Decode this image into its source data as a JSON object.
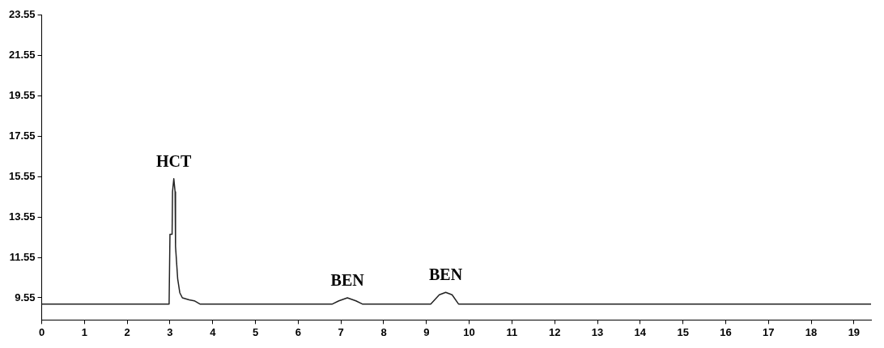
{
  "chart_data": {
    "type": "line",
    "x": [
      0,
      2.98,
      3.0,
      3.05,
      3.06,
      3.09,
      3.12,
      3.13,
      3.18,
      3.23,
      3.29,
      3.45,
      3.57,
      3.7,
      6.8,
      6.95,
      7.15,
      7.35,
      7.5,
      9.1,
      9.3,
      9.45,
      9.6,
      9.75,
      19.4
    ],
    "series": [
      {
        "color": "#222222",
        "values": [
          9.24,
          9.24,
          12.7,
          12.7,
          14.8,
          15.45,
          14.8,
          12.1,
          10.5,
          9.8,
          9.55,
          9.45,
          9.4,
          9.24,
          9.24,
          9.4,
          9.55,
          9.4,
          9.24,
          9.24,
          9.7,
          9.82,
          9.7,
          9.24,
          9.24
        ]
      }
    ],
    "xlim": [
      0,
      19.4
    ],
    "xticks": [
      0,
      1,
      2,
      3,
      4,
      5,
      6,
      7,
      8,
      9,
      10,
      11,
      12,
      13,
      14,
      15,
      16,
      17,
      18,
      19
    ],
    "ylim": [
      8.45,
      23.55
    ],
    "yticks": [
      9.55,
      11.55,
      13.55,
      15.55,
      17.55,
      19.55,
      21.55,
      23.55
    ],
    "grid": false,
    "legend": false,
    "marker": "none",
    "line_style": "solid",
    "annotations": [
      {
        "text": "HCT",
        "x": 3.09,
        "y": 15.45
      },
      {
        "text": "BEN",
        "x": 7.15,
        "y": 9.55
      },
      {
        "text": "BEN",
        "x": 9.45,
        "y": 9.82
      }
    ]
  }
}
